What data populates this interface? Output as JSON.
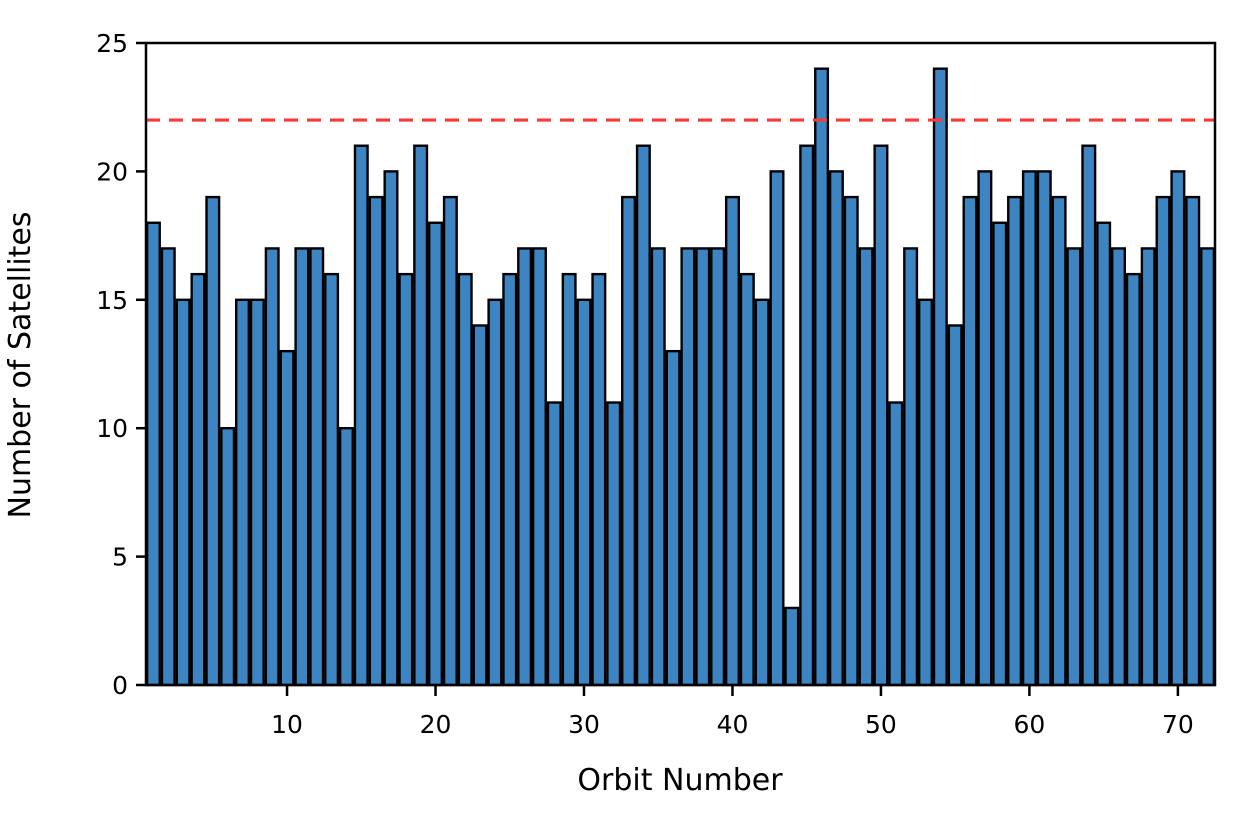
{
  "chart_data": {
    "type": "bar",
    "title": "",
    "xlabel": "Orbit Number",
    "ylabel": "Number of Satellites",
    "categories_note": "x = orbit number 1..72",
    "x_start": 1,
    "values": [
      18,
      17,
      15,
      16,
      19,
      10,
      15,
      15,
      17,
      13,
      17,
      17,
      16,
      10,
      21,
      19,
      20,
      16,
      21,
      18,
      19,
      16,
      14,
      15,
      16,
      17,
      17,
      11,
      16,
      15,
      16,
      11,
      19,
      21,
      17,
      13,
      17,
      17,
      17,
      19,
      16,
      15,
      20,
      3,
      21,
      24,
      20,
      19,
      17,
      21,
      11,
      17,
      15,
      24,
      14,
      19,
      20,
      18,
      19,
      20,
      20,
      19,
      17,
      21,
      18,
      17,
      16,
      17,
      19,
      20,
      19,
      17
    ],
    "xticks": [
      10,
      20,
      30,
      40,
      50,
      60,
      70
    ],
    "yticks": [
      0,
      5,
      10,
      15,
      20,
      25
    ],
    "xlim": [
      0.5,
      72.5
    ],
    "ylim": [
      0,
      25
    ],
    "grid": false,
    "legend": null,
    "reference_line": {
      "y": 22,
      "style": "dashed",
      "color": "#f93a35"
    },
    "bar_fill_color": "#3d85c2",
    "bar_edge_color": "#000000",
    "axis_color": "#000000"
  }
}
